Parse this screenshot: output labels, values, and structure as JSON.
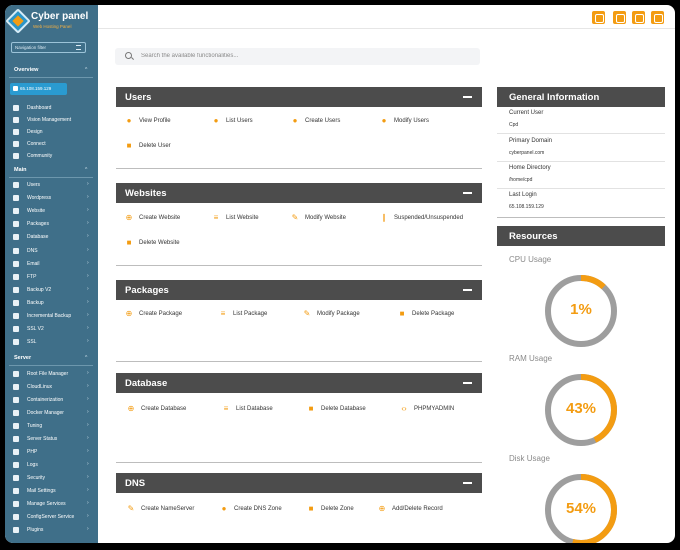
{
  "brand": {
    "name": "Cyber panel",
    "tagline": "Web Hosting Panel"
  },
  "nav_filter": {
    "placeholder": "Navigation filter"
  },
  "sidebar": {
    "overview_title": "Overview",
    "ip_chip": "65.108.159.129",
    "overview_items": [
      {
        "label": "Dashboard",
        "icon": "dashboard-icon"
      },
      {
        "label": "Vision Management",
        "icon": "vision-icon"
      },
      {
        "label": "Design",
        "icon": "design-icon"
      },
      {
        "label": "Connect",
        "icon": "connect-icon"
      },
      {
        "label": "Community",
        "icon": "community-icon"
      }
    ],
    "main_title": "Main",
    "main_items": [
      {
        "label": "Users",
        "icon": "users-icon"
      },
      {
        "label": "Wordpress",
        "icon": "wordpress-icon"
      },
      {
        "label": "Website",
        "icon": "website-icon"
      },
      {
        "label": "Packages",
        "icon": "packages-icon"
      },
      {
        "label": "Database",
        "icon": "database-icon"
      },
      {
        "label": "DNS",
        "icon": "dns-icon"
      },
      {
        "label": "Email",
        "icon": "email-icon"
      },
      {
        "label": "FTP",
        "icon": "ftp-icon"
      },
      {
        "label": "Backup V2",
        "icon": "backup-icon"
      },
      {
        "label": "Backup",
        "icon": "backup-icon"
      },
      {
        "label": "Incremental Backup",
        "icon": "incremental-backup-icon"
      },
      {
        "label": "SSL V2",
        "icon": "ssl-icon"
      },
      {
        "label": "SSL",
        "icon": "ssl-icon"
      }
    ],
    "server_title": "Server",
    "server_items": [
      {
        "label": "Root File Manager",
        "icon": "file-manager-icon"
      },
      {
        "label": "CloudLinux",
        "icon": "cloudlinux-icon"
      },
      {
        "label": "Containerization",
        "icon": "container-icon"
      },
      {
        "label": "Docker Manager",
        "icon": "docker-icon"
      },
      {
        "label": "Tuning",
        "icon": "tuning-icon"
      },
      {
        "label": "Server Status",
        "icon": "server-status-icon"
      },
      {
        "label": "PHP",
        "icon": "php-icon"
      },
      {
        "label": "Logs",
        "icon": "logs-icon"
      },
      {
        "label": "Security",
        "icon": "security-icon"
      },
      {
        "label": "Mail Settings",
        "icon": "mail-settings-icon"
      },
      {
        "label": "Manage Services",
        "icon": "manage-services-icon"
      },
      {
        "label": "ConfigServer Service",
        "icon": "configserver-icon"
      },
      {
        "label": "Plugins",
        "icon": "plugins-icon"
      }
    ]
  },
  "topbar": {
    "icons": [
      "youtube-icon",
      "chat-icon",
      "settings-icon",
      "power-icon"
    ]
  },
  "search": {
    "placeholder": "Search the available functionalities..."
  },
  "panels": {
    "users": {
      "title": "Users",
      "actions": [
        "View Profile",
        "List Users",
        "Create Users",
        "Modify Users",
        "Delete User"
      ]
    },
    "websites": {
      "title": "Websites",
      "actions": [
        "Create Website",
        "List Website",
        "Modify Website",
        "Suspended/Unsuspended",
        "Delete Website"
      ]
    },
    "packages": {
      "title": "Packages",
      "actions": [
        "Create Package",
        "List Package",
        "Modify Package",
        "Delete Package"
      ]
    },
    "database": {
      "title": "Database",
      "actions": [
        "Create Database",
        "List Database",
        "Delete Database",
        "PHPMYADMIN"
      ]
    },
    "dns": {
      "title": "DNS",
      "actions": [
        "Create NameServer",
        "Create DNS Zone",
        "Delete Zone",
        "Add/Delete Record"
      ]
    }
  },
  "general_info": {
    "title": "General Information",
    "rows": [
      {
        "label": "Current User",
        "value": "Cpd"
      },
      {
        "label": "Primary Domain",
        "value": "cyberpanel.com"
      },
      {
        "label": "Home Directory",
        "value": "/home/cpd"
      },
      {
        "label": "Last Login",
        "value": "65.108.159.129"
      }
    ]
  },
  "resources": {
    "title": "Resources",
    "items": [
      {
        "label": "CPU Usage",
        "value": 1,
        "display": "1%"
      },
      {
        "label": "RAM Usage",
        "value": 43,
        "display": "43%"
      },
      {
        "label": "Disk Usage",
        "value": 54,
        "display": "54%"
      }
    ]
  },
  "colors": {
    "accent": "#f39c12",
    "sidebar": "#3f6f89",
    "panel_header": "#4c4c4c",
    "gauge_track": "#9e9e9e"
  }
}
